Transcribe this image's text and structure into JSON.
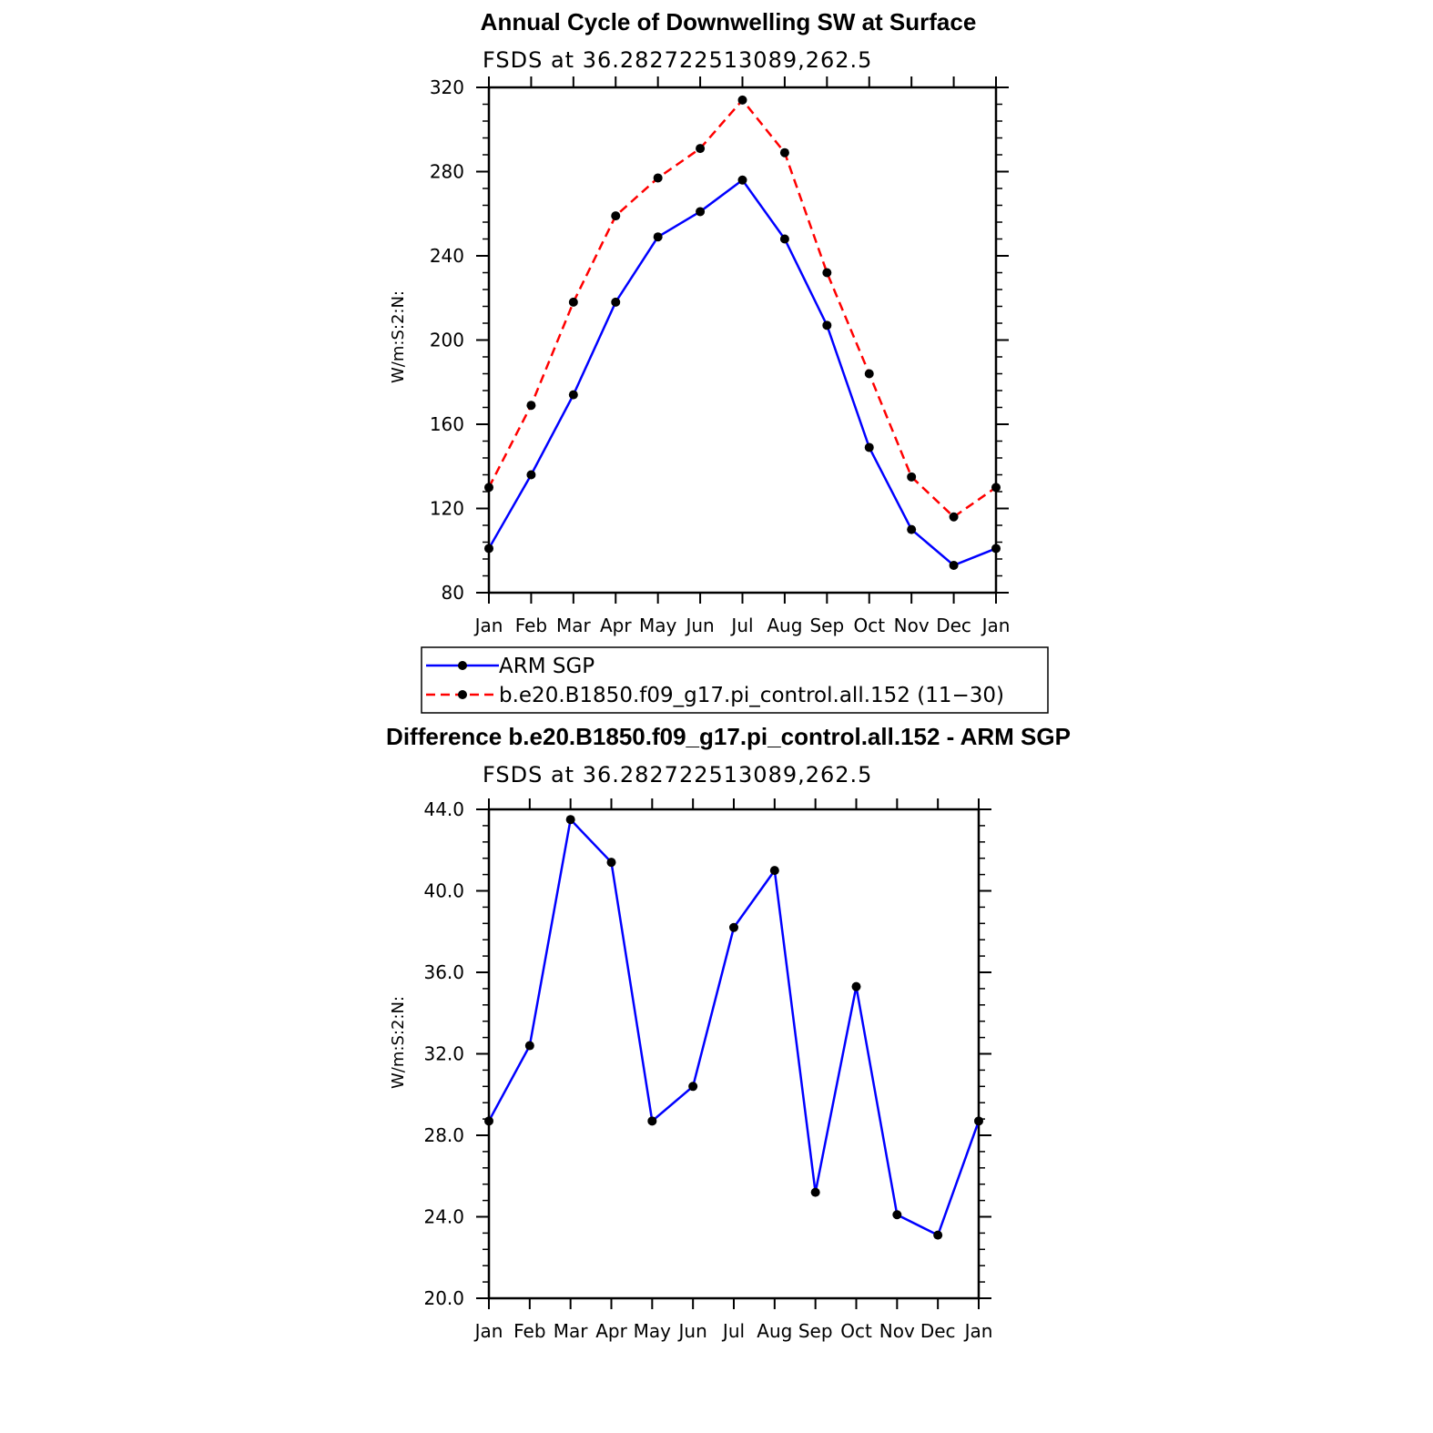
{
  "chart_data": [
    {
      "type": "line",
      "title": "Annual Cycle of Downwelling SW at Surface",
      "subtitle": "FSDS at 36.282722513089,262.5",
      "xlabel": "",
      "ylabel": "W/m:S:2:N:",
      "categories": [
        "Jan",
        "Feb",
        "Mar",
        "Apr",
        "May",
        "Jun",
        "Jul",
        "Aug",
        "Sep",
        "Oct",
        "Nov",
        "Dec",
        "Jan"
      ],
      "ylim": [
        80,
        320
      ],
      "yticks": [
        80,
        120,
        160,
        200,
        240,
        280,
        320
      ],
      "ytick_labels": [
        "80",
        "120",
        "160",
        "200",
        "240",
        "280",
        "320"
      ],
      "series": [
        {
          "name": "ARM SGP",
          "color": "#0000ff",
          "dash": "solid",
          "values": [
            101,
            136,
            174,
            218,
            249,
            261,
            276,
            248,
            207,
            149,
            110,
            93,
            101
          ]
        },
        {
          "name": "b.e20.B1850.f09_g17.pi_control.all.152 (11−30)",
          "color": "#ff0000",
          "dash": "dashed",
          "values": [
            130,
            169,
            218,
            259,
            277,
            291,
            314,
            289,
            232,
            184,
            135,
            116,
            130
          ]
        }
      ],
      "legend": "below"
    },
    {
      "type": "line",
      "title": "Difference b.e20.B1850.f09_g17.pi_control.all.152 - ARM SGP",
      "subtitle": "FSDS at 36.282722513089,262.5",
      "xlabel": "",
      "ylabel": "W/m:S:2:N:",
      "categories": [
        "Jan",
        "Feb",
        "Mar",
        "Apr",
        "May",
        "Jun",
        "Jul",
        "Aug",
        "Sep",
        "Oct",
        "Nov",
        "Dec",
        "Jan"
      ],
      "ylim": [
        20,
        44
      ],
      "yticks": [
        20,
        24,
        28,
        32,
        36,
        40,
        44
      ],
      "ytick_labels": [
        "20.0",
        "24.0",
        "28.0",
        "32.0",
        "36.0",
        "40.0",
        "44.0"
      ],
      "series": [
        {
          "color": "#0000ff",
          "dash": "solid",
          "values": [
            28.7,
            32.4,
            43.5,
            41.4,
            28.7,
            30.4,
            38.2,
            41.0,
            25.2,
            35.3,
            24.1,
            23.1,
            28.7
          ]
        }
      ]
    }
  ]
}
